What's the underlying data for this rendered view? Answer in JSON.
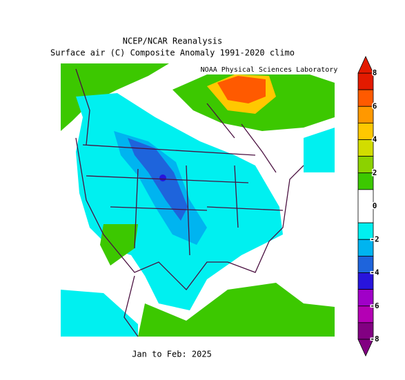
{
  "header": {
    "title": "NCEP/NCAR Reanalysis",
    "subtitle": "Surface air (C) Composite Anomaly 1991-2020 climo",
    "credit": "NOAA Physical Sciences Laboratory"
  },
  "footer": {
    "period": "Jan to Feb: 2025"
  },
  "colorbar": {
    "lim": [
      -8,
      8
    ],
    "ticks": [
      8,
      6,
      4,
      2,
      0,
      -2,
      -4,
      -6,
      -8
    ],
    "bands": [
      {
        "from": 7,
        "to": 8,
        "color": "#e31a00"
      },
      {
        "from": 6,
        "to": 7,
        "color": "#ff5a00"
      },
      {
        "from": 5,
        "to": 6,
        "color": "#ff9800"
      },
      {
        "from": 4,
        "to": 5,
        "color": "#ffc800"
      },
      {
        "from": 3,
        "to": 4,
        "color": "#d2dc00"
      },
      {
        "from": 2,
        "to": 3,
        "color": "#8cd200"
      },
      {
        "from": 1,
        "to": 2,
        "color": "#3cc800"
      },
      {
        "from": -1,
        "to": 1,
        "color": "#ffffff"
      },
      {
        "from": -2,
        "to": -1,
        "color": "#00f0f0"
      },
      {
        "from": -3,
        "to": -2,
        "color": "#00b4f0"
      },
      {
        "from": -4,
        "to": -3,
        "color": "#1e64dc"
      },
      {
        "from": -5,
        "to": -4,
        "color": "#2814dc"
      },
      {
        "from": -6,
        "to": -5,
        "color": "#a000c8"
      },
      {
        "from": -7,
        "to": -6,
        "color": "#b400b4"
      },
      {
        "from": -8,
        "to": -7,
        "color": "#820082"
      }
    ]
  }
}
